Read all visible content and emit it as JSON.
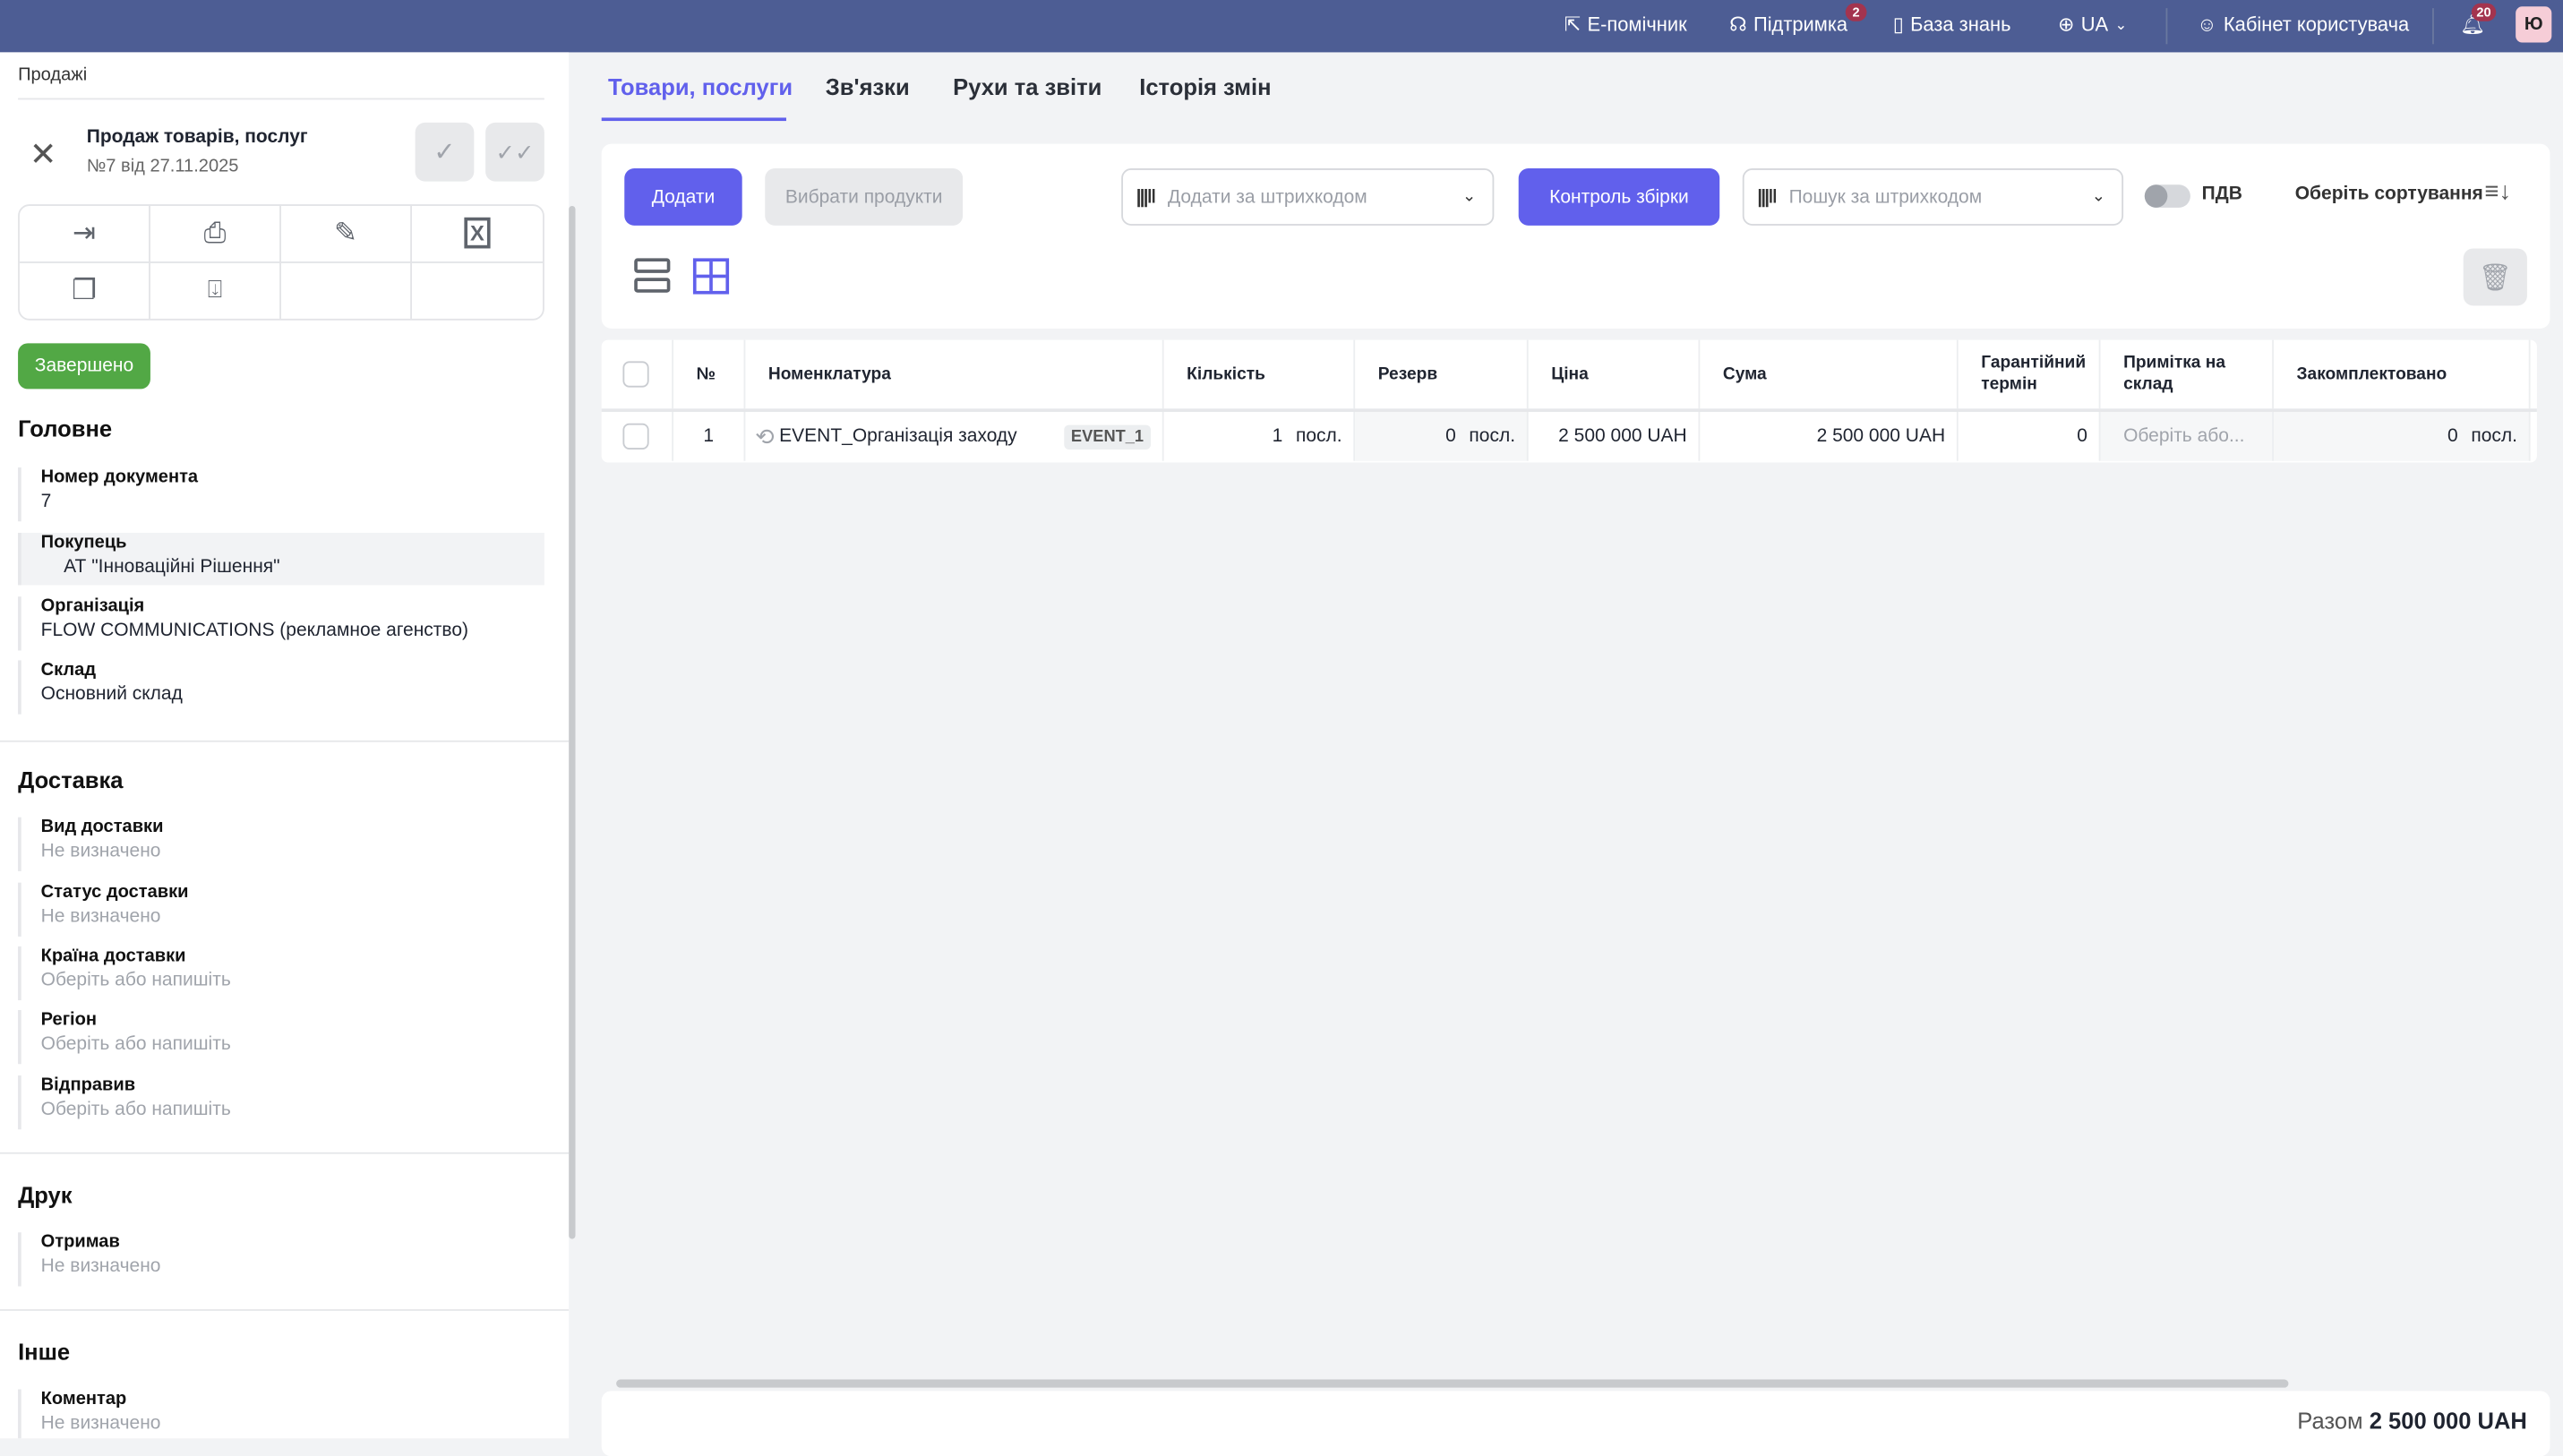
{
  "topbar": {
    "assistant": "Е-помічник",
    "support": "Підтримка",
    "support_badge": "2",
    "knowledge": "База знань",
    "language": "UA",
    "cabinet": "Кабінет користувача",
    "notifications_badge": "20",
    "avatar": "Ю",
    "color": "#4d5d94"
  },
  "left": {
    "breadcrumb": "Продажі",
    "doc_title": "Продаж товарів, послуг",
    "doc_subtitle": "№7 від 27.11.2025",
    "status": "Завершено",
    "status_color": "#52a845",
    "sections": {
      "main": "Головне",
      "delivery": "Доставка",
      "print": "Друк",
      "other": "Інше"
    },
    "main_fields": [
      {
        "label": "Номер документа",
        "value": "7"
      },
      {
        "label": "Покупець",
        "value": "АТ \"Інноваційні Рішення\""
      },
      {
        "label": "Організація",
        "value": "FLOW COMMUNICATIONS (рекламное агенство)"
      },
      {
        "label": "Склад",
        "value": "Основний склад"
      }
    ],
    "delivery_fields": [
      {
        "label": "Вид доставки",
        "value": "Не визначено"
      },
      {
        "label": "Статус доставки",
        "value": "Не визначено"
      },
      {
        "label": "Країна доставки",
        "value": "Оберіть або напишіть"
      },
      {
        "label": "Регіон",
        "value": "Оберіть або напишіть"
      },
      {
        "label": "Відправив",
        "value": "Оберіть або напишіть"
      }
    ],
    "print_fields": [
      {
        "label": "Отримав",
        "value": "Не визначено"
      }
    ],
    "other_fields": [
      {
        "label": "Коментар",
        "value": "Не визначено"
      }
    ]
  },
  "tabs": [
    {
      "label": "Товари, послуги",
      "active": true
    },
    {
      "label": "Зв'язки"
    },
    {
      "label": "Рухи та звіти"
    },
    {
      "label": "Історія змін"
    }
  ],
  "toolbar": {
    "add": "Додати",
    "choose_products": "Вибрати продукти",
    "add_barcode_placeholder": "Додати за штрихкодом",
    "assembly_control": "Контроль збірки",
    "search_barcode_placeholder": "Пошук за штрихкодом",
    "vat": "ПДВ",
    "vat_enabled": false,
    "sort": "Оберіть сортування",
    "accent": "#6160ec"
  },
  "table": {
    "headers": [
      "№",
      "Номенклатура",
      "Кількість",
      "Резерв",
      "Ціна",
      "Сума",
      "Гарантійний термін",
      "Примітка на склад",
      "Закомплектовано"
    ],
    "rows": [
      {
        "n": "1",
        "name": "EVENT_Організація заходу",
        "code": "EVENT_1",
        "qty": "1",
        "qty_unit": "посл.",
        "reserve": "0",
        "reserve_unit": "посл.",
        "price": "2 500 000  UAH",
        "sum": "2 500 000  UAH",
        "warranty": "0",
        "note": "Оберіть або...",
        "completed": "0",
        "completed_unit": "посл."
      }
    ]
  },
  "footer": {
    "total_label": "Разом",
    "total_value": "2 500 000 UAH"
  }
}
